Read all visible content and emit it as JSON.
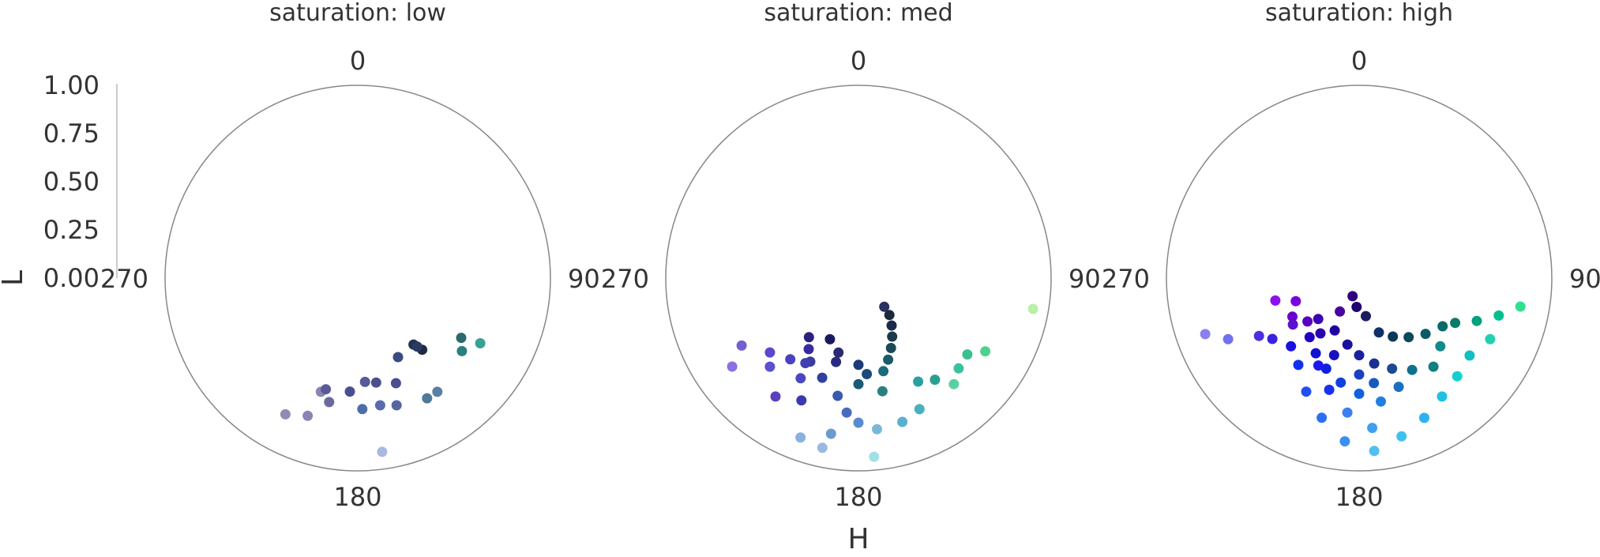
{
  "chart_data": {
    "type": "scatter",
    "projection": "polar",
    "x_field": "H",
    "y_field": "L",
    "xlabel": "H",
    "ylabel": "L",
    "x_unit": "degrees",
    "ylim": [
      0,
      1
    ],
    "y_ticks": [
      "0.00",
      "0.25",
      "0.50",
      "0.75",
      "1.00"
    ],
    "angle_ticks": [
      "0",
      "90",
      "180",
      "270"
    ],
    "facet_field": "saturation",
    "facets": [
      {
        "title": "saturation: low",
        "points": [
          {
            "H": 138,
            "L": 0.5,
            "color": "#1f2a44"
          },
          {
            "H": 140,
            "L": 0.45,
            "color": "#223355"
          },
          {
            "H": 139,
            "L": 0.47,
            "color": "#2a3a60"
          },
          {
            "H": 153,
            "L": 0.46,
            "color": "#3b4a80"
          },
          {
            "H": 160,
            "L": 0.58,
            "color": "#4a4d8f"
          },
          {
            "H": 170,
            "L": 0.55,
            "color": "#4b4f8e"
          },
          {
            "H": 176,
            "L": 0.54,
            "color": "#555a99"
          },
          {
            "H": 184,
            "L": 0.59,
            "color": "#4a4f92"
          },
          {
            "H": 193,
            "L": 0.66,
            "color": "#6a6a9e"
          },
          {
            "H": 198,
            "L": 0.62,
            "color": "#8a86b0"
          },
          {
            "H": 196,
            "L": 0.6,
            "color": "#5a5a99"
          },
          {
            "H": 200,
            "L": 0.76,
            "color": "#8a84b6"
          },
          {
            "H": 208,
            "L": 0.8,
            "color": "#8f8cb8"
          },
          {
            "H": 170,
            "L": 0.67,
            "color": "#5a6ab0"
          },
          {
            "H": 163,
            "L": 0.69,
            "color": "#5566a0"
          },
          {
            "H": 178,
            "L": 0.68,
            "color": "#4c6faa"
          },
          {
            "H": 150,
            "L": 0.72,
            "color": "#4e7a9a"
          },
          {
            "H": 145,
            "L": 0.72,
            "color": "#5a7fa5"
          },
          {
            "H": 125,
            "L": 0.66,
            "color": "#2a8080"
          },
          {
            "H": 120,
            "L": 0.62,
            "color": "#2a6a6a"
          },
          {
            "H": 118,
            "L": 0.72,
            "color": "#3aa090"
          },
          {
            "H": 172,
            "L": 0.91,
            "color": "#a8b8e0"
          }
        ]
      },
      {
        "title": "saturation: med",
        "points": [
          {
            "H": 175,
            "L": 0.93,
            "color": "#a4dfe8"
          },
          {
            "H": 100,
            "L": 0.92,
            "color": "#b8f0a8"
          },
          {
            "H": 143,
            "L": 0.66,
            "color": "#2aa090"
          },
          {
            "H": 150,
            "L": 0.62,
            "color": "#2aa0a0"
          },
          {
            "H": 125,
            "L": 0.69,
            "color": "#3ac090"
          },
          {
            "H": 132,
            "L": 0.7,
            "color": "#3cc0a0"
          },
          {
            "H": 120,
            "L": 0.76,
            "color": "#50d090"
          },
          {
            "H": 138,
            "L": 0.74,
            "color": "#5ad0a0"
          },
          {
            "H": 155,
            "L": 0.75,
            "color": "#4ab0c0"
          },
          {
            "H": 163,
            "L": 0.78,
            "color": "#5ab0d0"
          },
          {
            "H": 173,
            "L": 0.79,
            "color": "#7ab8d8"
          },
          {
            "H": 168,
            "L": 0.6,
            "color": "#2a8080"
          },
          {
            "H": 180,
            "L": 0.55,
            "color": "#1a5a7a"
          },
          {
            "H": 175,
            "L": 0.5,
            "color": "#1a4a7a"
          },
          {
            "H": 165,
            "L": 0.5,
            "color": "#1a6a7a"
          },
          {
            "H": 160,
            "L": 0.45,
            "color": "#1a5a6a"
          },
          {
            "H": 155,
            "L": 0.4,
            "color": "#1a4a5a"
          },
          {
            "H": 150,
            "L": 0.35,
            "color": "#1a3a4a"
          },
          {
            "H": 145,
            "L": 0.3,
            "color": "#1a2a4a"
          },
          {
            "H": 140,
            "L": 0.25,
            "color": "#1a2a3a"
          },
          {
            "H": 138,
            "L": 0.2,
            "color": "#2a3060"
          },
          {
            "H": 200,
            "L": 0.55,
            "color": "#3040a0"
          },
          {
            "H": 210,
            "L": 0.5,
            "color": "#3a3aa0"
          },
          {
            "H": 195,
            "L": 0.45,
            "color": "#2a2a80"
          },
          {
            "H": 220,
            "L": 0.55,
            "color": "#4a40c0"
          },
          {
            "H": 230,
            "L": 0.6,
            "color": "#5a48d0"
          },
          {
            "H": 225,
            "L": 0.65,
            "color": "#5a50d0"
          },
          {
            "H": 240,
            "L": 0.7,
            "color": "#7060d0"
          },
          {
            "H": 235,
            "L": 0.8,
            "color": "#8a70e0"
          },
          {
            "H": 215,
            "L": 0.75,
            "color": "#5a40c0"
          },
          {
            "H": 205,
            "L": 0.7,
            "color": "#3a3ab0"
          },
          {
            "H": 190,
            "L": 0.62,
            "color": "#3a5ab0"
          },
          {
            "H": 185,
            "L": 0.7,
            "color": "#4a6ac0"
          },
          {
            "H": 180,
            "L": 0.75,
            "color": "#5a8ad0"
          },
          {
            "H": 190,
            "L": 0.82,
            "color": "#6a9ad0"
          },
          {
            "H": 200,
            "L": 0.88,
            "color": "#8ab0e0"
          },
          {
            "H": 192,
            "L": 0.9,
            "color": "#9ab8e0"
          },
          {
            "H": 210,
            "L": 0.6,
            "color": "#4a48c0"
          },
          {
            "H": 215,
            "L": 0.45,
            "color": "#3a2aa0"
          },
          {
            "H": 220,
            "L": 0.4,
            "color": "#2a2080"
          },
          {
            "H": 205,
            "L": 0.35,
            "color": "#1a1a60"
          },
          {
            "H": 195,
            "L": 0.4,
            "color": "#2a2a70"
          },
          {
            "H": 212,
            "L": 0.52,
            "color": "#4040b0"
          },
          {
            "H": 180,
            "L": 0.45,
            "color": "#1a3a7a"
          }
        ]
      },
      {
        "title": "saturation: high",
        "points": [
          {
            "H": 250,
            "L": 0.35,
            "color": "#7a00e0"
          },
          {
            "H": 255,
            "L": 0.45,
            "color": "#8a10f0"
          },
          {
            "H": 240,
            "L": 0.4,
            "color": "#6a00d0"
          },
          {
            "H": 230,
            "L": 0.35,
            "color": "#5a00c0"
          },
          {
            "H": 210,
            "L": 0.2,
            "color": "#4a00a0"
          },
          {
            "H": 200,
            "L": 0.1,
            "color": "#300080"
          },
          {
            "H": 185,
            "L": 0.15,
            "color": "#200070"
          },
          {
            "H": 170,
            "L": 0.2,
            "color": "#1a1a60"
          },
          {
            "H": 160,
            "L": 0.3,
            "color": "#10306a"
          },
          {
            "H": 150,
            "L": 0.35,
            "color": "#0a3a5a"
          },
          {
            "H": 140,
            "L": 0.4,
            "color": "#0a4a5a"
          },
          {
            "H": 130,
            "L": 0.45,
            "color": "#0a5a6a"
          },
          {
            "H": 120,
            "L": 0.5,
            "color": "#0a6a6a"
          },
          {
            "H": 115,
            "L": 0.55,
            "color": "#0a7a6a"
          },
          {
            "H": 110,
            "L": 0.65,
            "color": "#00a080"
          },
          {
            "H": 105,
            "L": 0.75,
            "color": "#00c090"
          },
          {
            "H": 100,
            "L": 0.85,
            "color": "#30e090"
          },
          {
            "H": 115,
            "L": 0.75,
            "color": "#20d0b0"
          },
          {
            "H": 125,
            "L": 0.7,
            "color": "#10c0c0"
          },
          {
            "H": 135,
            "L": 0.72,
            "color": "#10d0d0"
          },
          {
            "H": 145,
            "L": 0.75,
            "color": "#20c0e0"
          },
          {
            "H": 155,
            "L": 0.8,
            "color": "#30b0f0"
          },
          {
            "H": 165,
            "L": 0.85,
            "color": "#40c0f0"
          },
          {
            "H": 175,
            "L": 0.9,
            "color": "#50c0f0"
          },
          {
            "H": 185,
            "L": 0.85,
            "color": "#3a90f0"
          },
          {
            "H": 195,
            "L": 0.75,
            "color": "#2a70f0"
          },
          {
            "H": 205,
            "L": 0.65,
            "color": "#2050f0"
          },
          {
            "H": 215,
            "L": 0.55,
            "color": "#1030f0"
          },
          {
            "H": 225,
            "L": 0.5,
            "color": "#1a10e0"
          },
          {
            "H": 235,
            "L": 0.55,
            "color": "#3a20e0"
          },
          {
            "H": 245,
            "L": 0.75,
            "color": "#7070f0"
          },
          {
            "H": 250,
            "L": 0.85,
            "color": "#8a80f0"
          },
          {
            "H": 220,
            "L": 0.4,
            "color": "#2000c0"
          },
          {
            "H": 210,
            "L": 0.45,
            "color": "#1010d0"
          },
          {
            "H": 200,
            "L": 0.5,
            "color": "#1020e0"
          },
          {
            "H": 190,
            "L": 0.55,
            "color": "#1040e0"
          },
          {
            "H": 180,
            "L": 0.6,
            "color": "#1060e0"
          },
          {
            "H": 170,
            "L": 0.65,
            "color": "#2080e0"
          },
          {
            "H": 160,
            "L": 0.6,
            "color": "#1a70c0"
          },
          {
            "H": 150,
            "L": 0.55,
            "color": "#107090"
          },
          {
            "H": 140,
            "L": 0.6,
            "color": "#108080"
          },
          {
            "H": 130,
            "L": 0.55,
            "color": "#108a8a"
          },
          {
            "H": 195,
            "L": 0.6,
            "color": "#1a30f0"
          },
          {
            "H": 205,
            "L": 0.3,
            "color": "#2000a0"
          },
          {
            "H": 215,
            "L": 0.35,
            "color": "#2a00b0"
          },
          {
            "H": 225,
            "L": 0.3,
            "color": "#3a00b0"
          },
          {
            "H": 190,
            "L": 0.35,
            "color": "#1a10a0"
          },
          {
            "H": 180,
            "L": 0.4,
            "color": "#1a20a0"
          },
          {
            "H": 170,
            "L": 0.45,
            "color": "#1a3090"
          },
          {
            "H": 160,
            "L": 0.5,
            "color": "#1a4a90"
          },
          {
            "H": 185,
            "L": 0.7,
            "color": "#3a80f0"
          },
          {
            "H": 175,
            "L": 0.78,
            "color": "#40a0f0"
          },
          {
            "H": 235,
            "L": 0.42,
            "color": "#5a10d0"
          },
          {
            "H": 240,
            "L": 0.6,
            "color": "#4a30e0"
          },
          {
            "H": 205,
            "L": 0.5,
            "color": "#1a1af0"
          },
          {
            "H": 198,
            "L": 0.42,
            "color": "#1a10c0"
          },
          {
            "H": 180,
            "L": 0.5,
            "color": "#1a40c0"
          },
          {
            "H": 172,
            "L": 0.55,
            "color": "#1a5ac0"
          }
        ]
      }
    ]
  }
}
